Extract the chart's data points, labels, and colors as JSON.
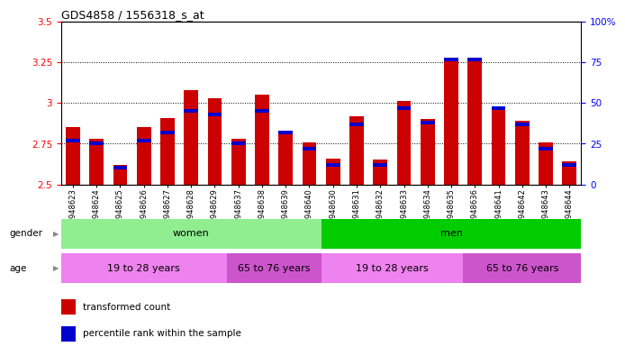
{
  "title": "GDS4858 / 1556318_s_at",
  "samples": [
    "GSM948623",
    "GSM948624",
    "GSM948625",
    "GSM948626",
    "GSM948627",
    "GSM948628",
    "GSM948629",
    "GSM948637",
    "GSM948638",
    "GSM948639",
    "GSM948640",
    "GSM948630",
    "GSM948631",
    "GSM948632",
    "GSM948633",
    "GSM948634",
    "GSM948635",
    "GSM948636",
    "GSM948641",
    "GSM948642",
    "GSM948643",
    "GSM948644"
  ],
  "red_values": [
    2.85,
    2.78,
    2.62,
    2.85,
    2.91,
    3.08,
    3.03,
    2.78,
    3.05,
    2.83,
    2.76,
    2.66,
    2.92,
    2.65,
    3.01,
    2.9,
    3.28,
    3.28,
    2.97,
    2.89,
    2.76,
    2.64
  ],
  "percentile_values": [
    27,
    25,
    10,
    27,
    32,
    45,
    43,
    25,
    45,
    32,
    22,
    12,
    37,
    12,
    47,
    38,
    77,
    77,
    47,
    37,
    22,
    12
  ],
  "base": 2.5,
  "ylim_left": [
    2.5,
    3.5
  ],
  "ylim_right": [
    0,
    100
  ],
  "yticks_left": [
    2.5,
    2.75,
    3.0,
    3.25,
    3.5
  ],
  "ytick_labels_left": [
    "2.5",
    "2.75",
    "3",
    "3.25",
    "3.5"
  ],
  "yticks_right": [
    0,
    25,
    50,
    75,
    100
  ],
  "ytick_labels_right": [
    "0",
    "25",
    "50",
    "75",
    "100%"
  ],
  "grid_values": [
    2.75,
    3.0,
    3.25
  ],
  "gender_groups": [
    {
      "label": "women",
      "start": 0,
      "end": 11,
      "color": "#90ee90"
    },
    {
      "label": "men",
      "start": 11,
      "end": 22,
      "color": "#00cc00"
    }
  ],
  "age_groups": [
    {
      "label": "19 to 28 years",
      "start": 0,
      "end": 7,
      "color": "#ee82ee"
    },
    {
      "label": "65 to 76 years",
      "start": 7,
      "end": 11,
      "color": "#cc55cc"
    },
    {
      "label": "19 to 28 years",
      "start": 11,
      "end": 17,
      "color": "#ee82ee"
    },
    {
      "label": "65 to 76 years",
      "start": 17,
      "end": 22,
      "color": "#cc55cc"
    }
  ],
  "red_color": "#cc0000",
  "blue_color": "#0000cc",
  "bar_width": 0.6,
  "background_color": "#ffffff"
}
